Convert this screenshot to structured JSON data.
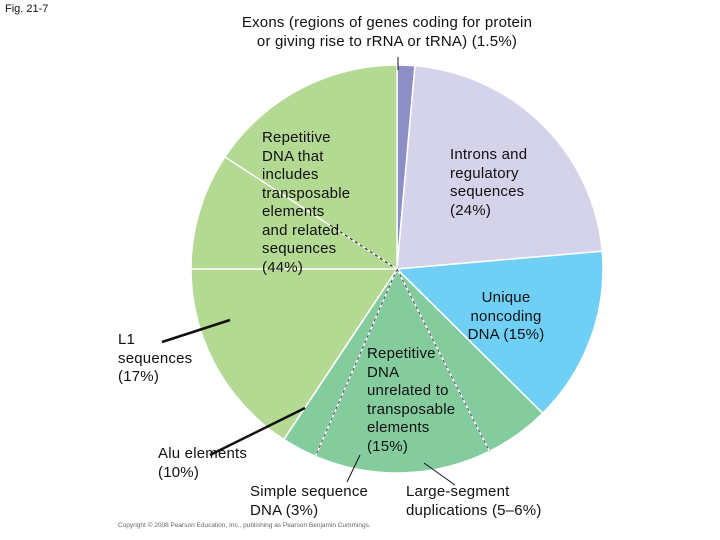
{
  "figure_label": "Fig. 21-7",
  "copyright": "Copyright © 2008 Pearson Education, Inc., publishing as Pearson Benjamin Cummings.",
  "chart_data": {
    "type": "pie",
    "title": "",
    "slices": [
      {
        "key": "exons",
        "label": "Exons (regions of genes coding for protein\nor giving rise to rRNA or tRNA) (1.5%)",
        "value": 1.5,
        "color": "#8e8ec6"
      },
      {
        "key": "introns",
        "label": "Introns and\nregulatory\nsequences\n(24%)",
        "value": 24,
        "color": "#d5d3ea"
      },
      {
        "key": "unique",
        "label": "Unique\nnoncoding\nDNA (15%)",
        "value": 15,
        "color": "#6fcff5"
      },
      {
        "key": "large_segment",
        "label": "Large-segment\nduplications (5–6%)",
        "value": 5.5,
        "color": "#84cc9e"
      },
      {
        "key": "repetitive_unrelated",
        "label": "Repetitive\nDNA\nunrelated to\ntransposable\nelements\n(15%)",
        "value": 15,
        "color": "#84cc9e"
      },
      {
        "key": "simple_sequence",
        "label": "Simple sequence\nDNA (3%)",
        "value": 3,
        "color": "#84cc9e"
      },
      {
        "key": "repetitive_transposable",
        "label": "Repetitive\nDNA that\nincludes\ntransposable\nelements\nand related\nsequences\n(44%)",
        "value": 44,
        "color": "#b4d993"
      }
    ],
    "sub_labels": [
      {
        "key": "l1",
        "label": "L1\nsequences\n(17%)",
        "value": 17
      },
      {
        "key": "alu",
        "label": "Alu elements\n(10%)",
        "value": 10
      }
    ],
    "grid": false,
    "legend": "none"
  }
}
